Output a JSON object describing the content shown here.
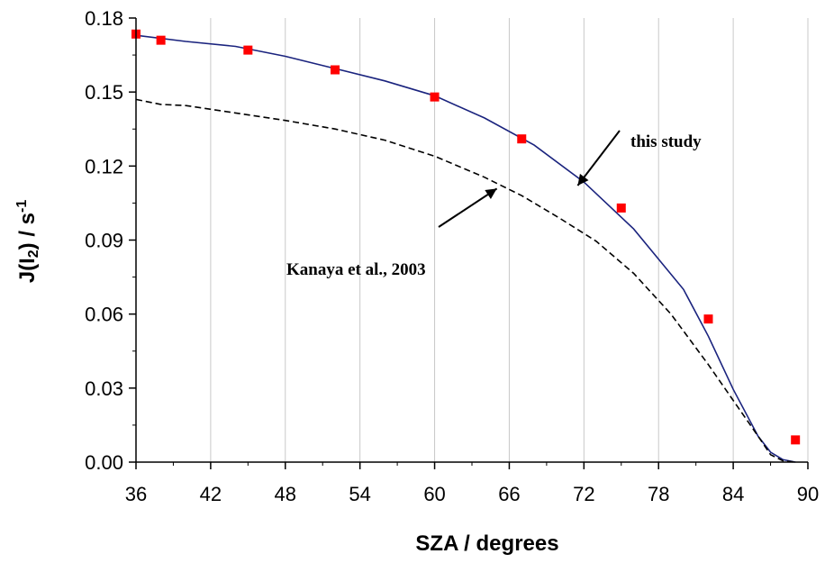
{
  "chart_data": {
    "type": "line",
    "xlabel": "SZA / degrees",
    "ylabel": {
      "main": "J(I",
      "sub": "2",
      "mid": ") / s",
      "sup": "-1"
    },
    "xlim": [
      36,
      90
    ],
    "ylim": [
      0.0,
      0.18
    ],
    "x_ticks": [
      "36",
      "42",
      "48",
      "54",
      "60",
      "66",
      "72",
      "78",
      "84",
      "90"
    ],
    "y_ticks": [
      "0.00",
      "0.03",
      "0.06",
      "0.09",
      "0.12",
      "0.15",
      "0.18"
    ],
    "grid": "vertical",
    "series": [
      {
        "style": "solid",
        "color": "#1a237e",
        "x": [
          36,
          40,
          44,
          48,
          52,
          56,
          60,
          64,
          68,
          72,
          76,
          80,
          82,
          84,
          86,
          87,
          88,
          89
        ],
        "y": [
          0.173,
          0.1705,
          0.1685,
          0.1645,
          0.1595,
          0.1545,
          0.1485,
          0.1395,
          0.1285,
          0.1135,
          0.0945,
          0.07,
          0.051,
          0.0295,
          0.0105,
          0.004,
          0.001,
          0.0
        ]
      },
      {
        "style": "dashed",
        "color": "#000000",
        "x": [
          36,
          38,
          40,
          44,
          48,
          52,
          56,
          60,
          64,
          67,
          70,
          73,
          76,
          79,
          82,
          84,
          86,
          87,
          88,
          89
        ],
        "y": [
          0.147,
          0.145,
          0.1445,
          0.1415,
          0.1385,
          0.135,
          0.1305,
          0.124,
          0.1155,
          0.108,
          0.099,
          0.0895,
          0.0765,
          0.06,
          0.0395,
          0.025,
          0.0105,
          0.003,
          0.0005,
          0.0
        ]
      },
      {
        "style": "markers",
        "color": "#ff0000",
        "x": [
          36,
          38,
          45,
          52,
          60,
          67,
          75,
          82,
          89
        ],
        "y": [
          0.1735,
          0.171,
          0.167,
          0.159,
          0.148,
          0.131,
          0.103,
          0.058,
          0.009
        ]
      }
    ],
    "annotations": [
      {
        "text": "this study",
        "target": [
          71.5,
          0.115
        ]
      },
      {
        "text": "Kanaya et al., 2003",
        "target": [
          65,
          0.1145
        ]
      }
    ]
  }
}
